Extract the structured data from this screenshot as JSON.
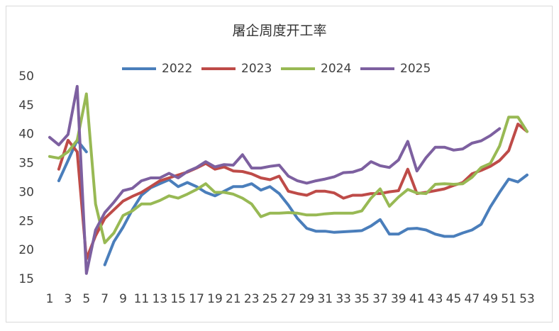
{
  "chart_data": {
    "type": "line",
    "title": "屠企周度开工率",
    "categories": [
      1,
      null,
      3,
      null,
      5,
      null,
      7,
      null,
      9,
      null,
      11,
      null,
      13,
      null,
      15,
      null,
      17,
      null,
      19,
      null,
      21,
      null,
      23,
      null,
      25,
      null,
      27,
      null,
      29,
      null,
      31,
      null,
      33,
      null,
      35,
      null,
      37,
      null,
      39,
      null,
      41,
      null,
      43,
      null,
      45,
      null,
      47,
      null,
      49,
      null,
      51,
      null,
      53
    ],
    "ylim": [
      15,
      50
    ],
    "yticks": [
      15,
      20,
      25,
      30,
      35,
      40,
      45,
      50
    ],
    "grid": false,
    "legend": "top",
    "series": [
      {
        "name": "2022",
        "color": "#4a7ebb",
        "values": [
          null,
          32,
          35.5,
          39,
          37,
          null,
          17.5,
          21.5,
          24,
          27,
          29.5,
          30.8,
          31.5,
          32.2,
          31,
          31.7,
          31,
          30,
          29.4,
          30.2,
          31,
          31,
          31.5,
          30.4,
          31,
          29.8,
          27.8,
          25.5,
          23.8,
          23.3,
          23.3,
          23.1,
          23.2,
          23.3,
          23.4,
          24.2,
          25.3,
          22.8,
          22.8,
          23.7,
          23.8,
          23.5,
          22.8,
          22.4,
          22.4,
          23,
          23.5,
          24.5,
          27.5,
          30,
          32.3,
          31.8,
          33
        ]
      },
      {
        "name": "2023",
        "color": "#be4b48",
        "values": [
          null,
          34,
          39,
          37,
          18.5,
          22.5,
          25.5,
          27,
          28.5,
          29.3,
          30,
          31,
          32,
          32.5,
          33,
          33.5,
          34.2,
          35,
          34,
          34.4,
          33.7,
          33.6,
          33.2,
          32.5,
          32.2,
          32.8,
          30.2,
          29.8,
          29.5,
          30.2,
          30.2,
          29.9,
          29,
          29.5,
          29.5,
          29.8,
          29.8,
          30.1,
          30.3,
          34,
          29.8,
          30,
          30.3,
          30.6,
          31.2,
          31.7,
          33.2,
          33.8,
          34.5,
          35.5,
          37.2,
          41.8,
          40.5
        ]
      },
      {
        "name": "2024",
        "color": "#98b954",
        "values": [
          36.2,
          35.9,
          37,
          39,
          47,
          28,
          21.3,
          23,
          26,
          26.8,
          28,
          28,
          28.6,
          29.4,
          29,
          29.7,
          30.5,
          31.5,
          30,
          30,
          29.7,
          29,
          28,
          25.8,
          26.4,
          26.4,
          26.5,
          26.4,
          26.1,
          26.1,
          26.3,
          26.4,
          26.4,
          26.4,
          26.8,
          29,
          30.6,
          27.6,
          29.2,
          30.5,
          29.9,
          29.8,
          31.4,
          31.5,
          31.4,
          31.5,
          32.6,
          34.3,
          35,
          38,
          43,
          43,
          40.5
        ]
      },
      {
        "name": "2025",
        "color": "#7d60a0",
        "values": [
          39.5,
          38.2,
          40,
          48.3,
          16,
          23.5,
          26.5,
          28.3,
          30.3,
          30.7,
          32,
          32.5,
          32.5,
          33.3,
          32.5,
          33.6,
          34.3,
          35.3,
          34.4,
          34.8,
          34.7,
          36.5,
          34.2,
          34.2,
          34.5,
          34.7,
          32.8,
          32,
          31.6,
          32,
          32.3,
          32.7,
          33.4,
          33.5,
          34,
          35.3,
          34.6,
          34.3,
          35.6,
          38.8,
          33.7,
          36,
          37.8,
          37.8,
          37.3,
          37.5,
          38.5,
          38.9,
          39.8,
          41,
          null,
          null,
          null
        ]
      }
    ]
  }
}
